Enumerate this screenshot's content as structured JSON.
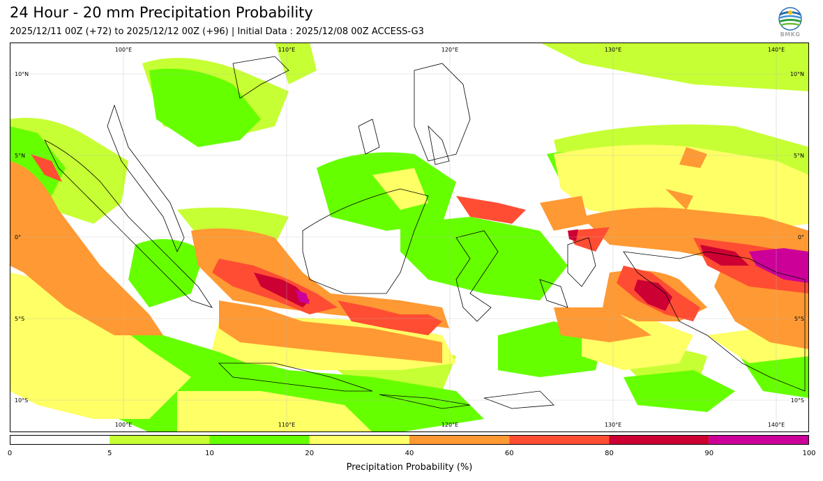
{
  "title": "24 Hour - 20 mm Precipitation Probability",
  "subtitle": "2025/12/11 00Z (+72) to 2025/12/12 00Z (+96) | Initial Data : 2025/12/08 00Z ACCESS-G3",
  "logo": {
    "text": "BMKG",
    "icon": "bmkg-logo-icon"
  },
  "map": {
    "lon_labels": [
      "100°E",
      "110°E",
      "120°E",
      "130°E",
      "140°E"
    ],
    "lat_labels": [
      "10°N",
      "5°N",
      "0°",
      "5°S",
      "10°S"
    ],
    "lon_range": [
      93,
      142
    ],
    "lat_range": [
      -12,
      12
    ],
    "lon_grid": [
      100,
      110,
      120,
      130,
      140
    ],
    "lat_grid": [
      10,
      5,
      0,
      -5,
      -10
    ]
  },
  "colorbar": {
    "label": "Precipitation Probability (%)",
    "ticks": [
      "0",
      "5",
      "10",
      "20",
      "40",
      "60",
      "80",
      "90",
      "100"
    ],
    "colors": [
      "#ffffff",
      "#c6ff33",
      "#66ff00",
      "#ffff66",
      "#ff9933",
      "#ff4d33",
      "#cc0033",
      "#cc0099"
    ]
  },
  "legend_colors": {
    "bin_5_10": "#c6ff33",
    "bin_10_20": "#66ff00",
    "bin_20_40": "#ffff66",
    "bin_40_60": "#ff9933",
    "bin_60_80": "#ff4d33",
    "bin_80_90": "#cc0033",
    "bin_90_100": "#cc0099"
  }
}
